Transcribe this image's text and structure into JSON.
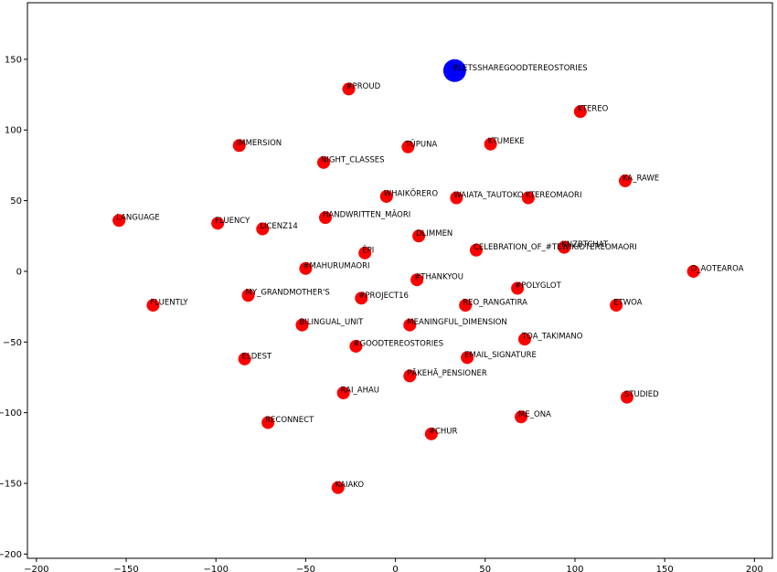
{
  "chart_data": {
    "type": "scatter",
    "title": "",
    "xlabel": "",
    "ylabel": "",
    "xlim": [
      -205,
      210
    ],
    "ylim": [
      -203,
      190
    ],
    "xticks": [
      -200,
      -150,
      -100,
      -50,
      0,
      50,
      100,
      150,
      200
    ],
    "yticks": [
      -200,
      -150,
      -100,
      -50,
      0,
      50,
      100,
      150
    ],
    "xtick_labels": [
      "−200",
      "−150",
      "−100",
      "−50",
      "0",
      "50",
      "100",
      "150",
      "200"
    ],
    "ytick_labels": [
      "−200",
      "−150",
      "−100",
      "−50",
      "0",
      "50",
      "100",
      "150"
    ],
    "grid": false,
    "colors": {
      "default": "#ff0000",
      "highlight": "#0000ff"
    },
    "points": [
      {
        "label": "#LETSSHAREGOODTEREOSTORIES",
        "x": 33,
        "y": 142,
        "highlight": true
      },
      {
        "label": "#PROUD",
        "x": -26,
        "y": 129
      },
      {
        "label": "KTEREO",
        "x": 103,
        "y": 113
      },
      {
        "label": "IMMERSION",
        "x": -87,
        "y": 89
      },
      {
        "label": "TŪPUNA",
        "x": 7,
        "y": 88
      },
      {
        "label": "KTUMEKE",
        "x": 53,
        "y": 90
      },
      {
        "label": "NIGHT_CLASSES",
        "x": -40,
        "y": 77
      },
      {
        "label": "KA_RAWE",
        "x": 128,
        "y": 64
      },
      {
        "label": "WHAIKŌRERO",
        "x": -5,
        "y": 53
      },
      {
        "label": "WAIATA_TAUTOKO",
        "x": 34,
        "y": 52
      },
      {
        "label": "KTEREOMAORI",
        "x": 74,
        "y": 52
      },
      {
        "label": "HANDWRITTEN_MĀORI",
        "x": -39,
        "y": 38
      },
      {
        "label": "LANGUAGE",
        "x": -154,
        "y": 36
      },
      {
        "label": "FLUENCY",
        "x": -99,
        "y": 34
      },
      {
        "label": "LICENZ14",
        "x": -74,
        "y": 30
      },
      {
        "label": "DLIMMEN",
        "x": 13,
        "y": 25
      },
      {
        "label": "KNZBTCHAT",
        "x": 94,
        "y": 17
      },
      {
        "label": "CELEBRATION_OF_#TEWIKIOTEREOMAORI",
        "x": 45,
        "y": 15
      },
      {
        "label": "ĒPI",
        "x": -17,
        "y": 13
      },
      {
        "label": "#MAHURUMAORI",
        "x": -50,
        "y": 2
      },
      {
        "label": "O_AOTEAROA",
        "x": 166,
        "y": 0
      },
      {
        "label": "#THANKYOU",
        "x": 12,
        "y": -6
      },
      {
        "label": "#POLYGLOT",
        "x": 68,
        "y": -12
      },
      {
        "label": "MY_GRANDMOTHER'S",
        "x": -82,
        "y": -17
      },
      {
        "label": "#PROJECT16",
        "x": -19,
        "y": -19
      },
      {
        "label": "FLUENTLY",
        "x": -135,
        "y": -24
      },
      {
        "label": "REO_RANGATIRA",
        "x": 39,
        "y": -24
      },
      {
        "label": "ETWOA",
        "x": 123,
        "y": -24
      },
      {
        "label": "BILINGUAL_UNIT",
        "x": -52,
        "y": -38
      },
      {
        "label": "MEANINGFUL_DIMENSION",
        "x": 8,
        "y": -38
      },
      {
        "label": "TOA_TAKIMANO",
        "x": 72,
        "y": -48
      },
      {
        "label": "#GOODTEREOSTORIES",
        "x": -22,
        "y": -53
      },
      {
        "label": "ELDEST",
        "x": -84,
        "y": -62
      },
      {
        "label": "EMAIL_SIGNATURE",
        "x": 40,
        "y": -61
      },
      {
        "label": "PĀKEHĀ_PENSIONER",
        "x": 8,
        "y": -74
      },
      {
        "label": "RAI_AHAU",
        "x": -29,
        "y": -86
      },
      {
        "label": "STUDIED",
        "x": 129,
        "y": -89
      },
      {
        "label": "ME_ONA",
        "x": 70,
        "y": -103
      },
      {
        "label": "RECONNECT",
        "x": -71,
        "y": -107
      },
      {
        "label": "#CHUR",
        "x": 20,
        "y": -115
      },
      {
        "label": "KAIAKO",
        "x": -32,
        "y": -153
      }
    ]
  }
}
